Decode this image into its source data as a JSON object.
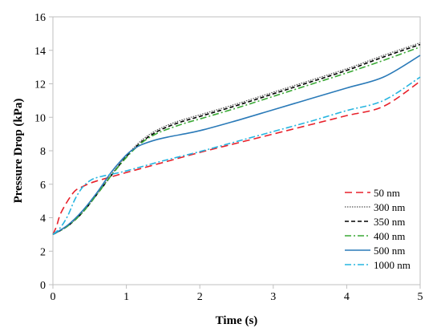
{
  "chart_data": {
    "type": "line",
    "xlabel": "Time (s)",
    "ylabel": "Pressure Drop (kPa)",
    "xlim": [
      0,
      5
    ],
    "ylim": [
      0,
      16
    ],
    "xticks": [
      "0",
      "1",
      "2",
      "3",
      "4",
      "5"
    ],
    "yticks": [
      "0",
      "2",
      "4",
      "6",
      "8",
      "10",
      "12",
      "14",
      "16"
    ],
    "grid": false,
    "legend_position": "right",
    "series": [
      {
        "name": "50 nm",
        "color": "#e8212b",
        "dash": "long-dash",
        "points": [
          [
            0,
            3.0
          ],
          [
            0.05,
            3.5
          ],
          [
            0.1,
            4.2
          ],
          [
            0.2,
            5.0
          ],
          [
            0.3,
            5.6
          ],
          [
            0.4,
            5.85
          ],
          [
            0.5,
            6.05
          ],
          [
            0.6,
            6.2
          ],
          [
            0.8,
            6.45
          ],
          [
            1.0,
            6.7
          ],
          [
            1.5,
            7.3
          ],
          [
            2.0,
            7.9
          ],
          [
            2.5,
            8.45
          ],
          [
            3.0,
            9.0
          ],
          [
            3.5,
            9.55
          ],
          [
            4.0,
            10.1
          ],
          [
            4.5,
            10.65
          ],
          [
            5.0,
            12.15
          ]
        ]
      },
      {
        "name": "300 nm",
        "color": "#555555",
        "dash": "dotted",
        "points": [
          [
            0,
            3.0
          ],
          [
            0.2,
            3.5
          ],
          [
            0.4,
            4.3
          ],
          [
            0.6,
            5.4
          ],
          [
            0.8,
            6.6
          ],
          [
            1.0,
            7.7
          ],
          [
            1.2,
            8.6
          ],
          [
            1.4,
            9.2
          ],
          [
            1.6,
            9.6
          ],
          [
            1.8,
            9.9
          ],
          [
            2.0,
            10.15
          ],
          [
            2.5,
            10.8
          ],
          [
            3.0,
            11.5
          ],
          [
            3.5,
            12.2
          ],
          [
            4.0,
            12.9
          ],
          [
            4.5,
            13.7
          ],
          [
            5.0,
            14.45
          ]
        ]
      },
      {
        "name": "350 nm",
        "color": "#000000",
        "dash": "short-dash",
        "points": [
          [
            0,
            3.0
          ],
          [
            0.2,
            3.5
          ],
          [
            0.4,
            4.3
          ],
          [
            0.6,
            5.4
          ],
          [
            0.8,
            6.55
          ],
          [
            1.0,
            7.65
          ],
          [
            1.2,
            8.5
          ],
          [
            1.4,
            9.1
          ],
          [
            1.6,
            9.5
          ],
          [
            1.8,
            9.8
          ],
          [
            2.0,
            10.05
          ],
          [
            2.5,
            10.7
          ],
          [
            3.0,
            11.4
          ],
          [
            3.5,
            12.1
          ],
          [
            4.0,
            12.8
          ],
          [
            4.5,
            13.6
          ],
          [
            5.0,
            14.35
          ]
        ]
      },
      {
        "name": "400 nm",
        "color": "#3aa935",
        "dash": "dash-dot",
        "points": [
          [
            0,
            3.0
          ],
          [
            0.2,
            3.5
          ],
          [
            0.4,
            4.3
          ],
          [
            0.6,
            5.4
          ],
          [
            0.8,
            6.55
          ],
          [
            1.0,
            7.6
          ],
          [
            1.2,
            8.45
          ],
          [
            1.4,
            9.0
          ],
          [
            1.6,
            9.35
          ],
          [
            1.8,
            9.65
          ],
          [
            2.0,
            9.9
          ],
          [
            2.5,
            10.55
          ],
          [
            3.0,
            11.25
          ],
          [
            3.5,
            11.95
          ],
          [
            4.0,
            12.65
          ],
          [
            4.5,
            13.4
          ],
          [
            5.0,
            14.2
          ]
        ]
      },
      {
        "name": "500 nm",
        "color": "#2a7ab8",
        "dash": "solid",
        "points": [
          [
            0,
            3.0
          ],
          [
            0.2,
            3.55
          ],
          [
            0.4,
            4.4
          ],
          [
            0.6,
            5.5
          ],
          [
            0.8,
            6.75
          ],
          [
            1.0,
            7.75
          ],
          [
            1.1,
            8.1
          ],
          [
            1.2,
            8.35
          ],
          [
            1.4,
            8.65
          ],
          [
            1.6,
            8.85
          ],
          [
            2.0,
            9.2
          ],
          [
            2.5,
            9.8
          ],
          [
            3.0,
            10.45
          ],
          [
            3.5,
            11.1
          ],
          [
            4.0,
            11.75
          ],
          [
            4.5,
            12.4
          ],
          [
            5.0,
            13.7
          ]
        ]
      },
      {
        "name": "1000 nm",
        "color": "#27b5e0",
        "dash": "dash-dot",
        "points": [
          [
            0,
            3.0
          ],
          [
            0.1,
            3.4
          ],
          [
            0.2,
            4.1
          ],
          [
            0.3,
            5.1
          ],
          [
            0.4,
            5.8
          ],
          [
            0.5,
            6.2
          ],
          [
            0.6,
            6.4
          ],
          [
            0.8,
            6.6
          ],
          [
            1.0,
            6.8
          ],
          [
            1.5,
            7.4
          ],
          [
            2.0,
            7.95
          ],
          [
            2.5,
            8.55
          ],
          [
            3.0,
            9.15
          ],
          [
            3.5,
            9.75
          ],
          [
            4.0,
            10.4
          ],
          [
            4.5,
            11.0
          ],
          [
            5.0,
            12.4
          ]
        ]
      }
    ]
  }
}
